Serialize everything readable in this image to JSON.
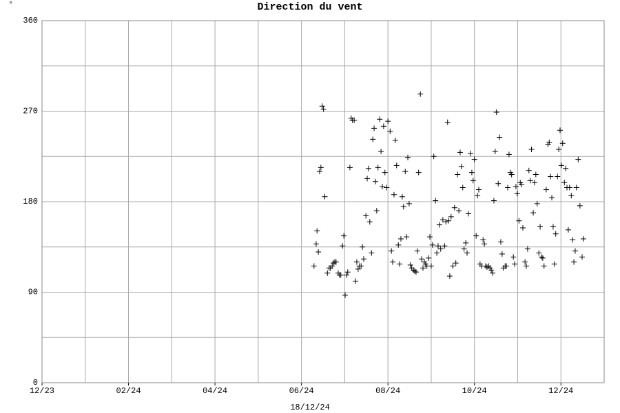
{
  "chart_data": {
    "type": "scatter",
    "title": "Direction du vent",
    "unit_label": "°",
    "footer": "18/12/24",
    "marker": "+",
    "color": "#000000",
    "grid": true,
    "xlim": [
      0,
      13
    ],
    "xticks": [
      {
        "value": 0,
        "label": "12/23"
      },
      {
        "value": 2,
        "label": "02/24"
      },
      {
        "value": 4,
        "label": "04/24"
      },
      {
        "value": 6,
        "label": "06/24"
      },
      {
        "value": 8,
        "label": "08/24"
      },
      {
        "value": 10,
        "label": "10/24"
      },
      {
        "value": 12,
        "label": "12/24"
      }
    ],
    "xminor": [
      1,
      3,
      5,
      7,
      9,
      11,
      13
    ],
    "ylim": [
      0,
      360
    ],
    "yticks": [
      0,
      90,
      180,
      270,
      360
    ],
    "yminor": [
      45,
      135,
      225,
      315
    ],
    "x": [
      6.29,
      6.34,
      6.36,
      6.39,
      6.42,
      6.45,
      6.48,
      6.51,
      6.54,
      6.6,
      6.64,
      6.67,
      6.71,
      6.74,
      6.77,
      6.8,
      6.85,
      6.88,
      6.91,
      6.95,
      6.98,
      7.01,
      7.04,
      7.07,
      7.12,
      7.15,
      7.18,
      7.22,
      7.25,
      7.28,
      7.31,
      7.34,
      7.38,
      7.41,
      7.44,
      7.49,
      7.52,
      7.55,
      7.58,
      7.62,
      7.65,
      7.68,
      7.71,
      7.74,
      7.77,
      7.81,
      7.84,
      7.87,
      7.9,
      7.93,
      7.97,
      8.0,
      8.05,
      8.08,
      8.11,
      8.14,
      8.17,
      8.2,
      8.24,
      8.27,
      8.3,
      8.33,
      8.36,
      8.4,
      8.43,
      8.46,
      8.49,
      8.52,
      8.55,
      8.59,
      8.62,
      8.65,
      8.68,
      8.71,
      8.75,
      8.78,
      8.81,
      8.84,
      8.87,
      8.9,
      8.94,
      8.97,
      9.0,
      9.03,
      9.06,
      9.1,
      9.13,
      9.16,
      9.19,
      9.22,
      9.27,
      9.31,
      9.34,
      9.38,
      9.4,
      9.43,
      9.46,
      9.5,
      9.54,
      9.57,
      9.61,
      9.64,
      9.67,
      9.7,
      9.73,
      9.76,
      9.8,
      9.83,
      9.86,
      9.91,
      9.94,
      9.97,
      10.0,
      10.04,
      10.07,
      10.1,
      10.13,
      10.17,
      10.2,
      10.23,
      10.26,
      10.29,
      10.33,
      10.36,
      10.39,
      10.42,
      10.45,
      10.48,
      10.51,
      10.55,
      10.58,
      10.61,
      10.64,
      10.67,
      10.71,
      10.74,
      10.77,
      10.8,
      10.83,
      10.86,
      10.9,
      10.93,
      10.96,
      10.99,
      11.03,
      11.06,
      11.09,
      11.12,
      11.17,
      11.2,
      11.23,
      11.26,
      11.29,
      11.32,
      11.36,
      11.39,
      11.42,
      11.45,
      11.49,
      11.52,
      11.55,
      11.58,
      11.61,
      11.66,
      11.7,
      11.73,
      11.76,
      11.79,
      11.82,
      11.85,
      11.88,
      11.92,
      11.95,
      11.98,
      12.01,
      12.04,
      12.08,
      12.11,
      12.14,
      12.17,
      12.2,
      12.24,
      12.27,
      12.3,
      12.33,
      12.36,
      12.4,
      12.44,
      12.49,
      12.52
    ],
    "values": [
      116,
      138,
      151,
      130,
      210,
      214,
      275,
      272,
      185,
      109,
      114,
      114,
      116,
      119,
      120,
      120,
      109,
      107,
      107,
      136,
      146,
      87,
      107,
      110,
      214,
      263,
      261,
      261,
      101,
      120,
      113,
      116,
      116,
      135,
      123,
      166,
      203,
      213,
      160,
      129,
      242,
      253,
      200,
      171,
      214,
      262,
      230,
      195,
      255,
      209,
      194,
      260,
      250,
      131,
      120,
      187,
      241,
      216,
      137,
      118,
      143,
      185,
      175,
      210,
      145,
      224,
      178,
      117,
      114,
      112,
      111,
      110,
      131,
      209,
      287,
      123,
      114,
      120,
      118,
      116,
      124,
      145,
      116,
      137,
      225,
      181,
      129,
      136,
      157,
      133,
      162,
      136,
      160,
      259,
      161,
      106,
      165,
      116,
      174,
      119,
      207,
      171,
      229,
      215,
      194,
      133,
      139,
      129,
      168,
      228,
      209,
      201,
      222,
      146,
      186,
      192,
      118,
      116,
      142,
      138,
      116,
      115,
      116,
      114,
      112,
      109,
      181,
      230,
      269,
      198,
      244,
      140,
      128,
      114,
      116,
      116,
      194,
      227,
      209,
      207,
      125,
      118,
      195,
      188,
      161,
      199,
      197,
      154,
      120,
      116,
      133,
      211,
      201,
      232,
      169,
      199,
      207,
      178,
      129,
      155,
      125,
      124,
      116,
      192,
      237,
      239,
      205,
      184,
      155,
      118,
      148,
      205,
      232,
      251,
      216,
      238,
      199,
      213,
      194,
      152,
      194,
      186,
      142,
      120,
      131,
      194,
      222,
      176,
      125,
      143
    ]
  }
}
